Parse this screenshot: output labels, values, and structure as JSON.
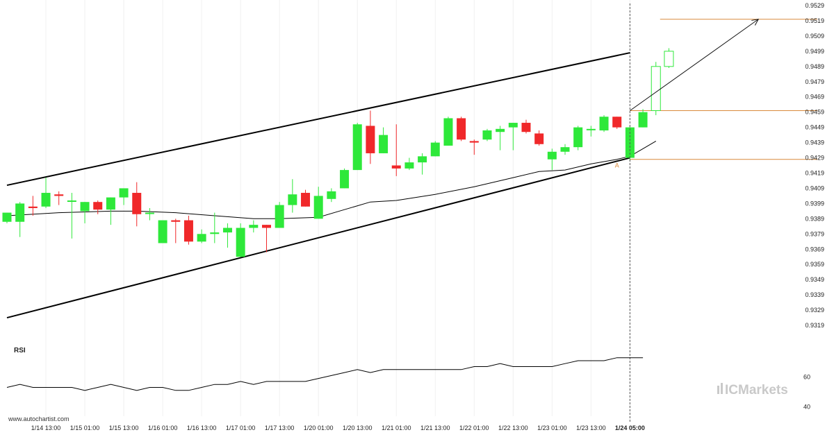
{
  "source": "www.autochartist.com",
  "brand": "ICMarkets",
  "colors": {
    "up": "#2ee83a",
    "down": "#f0282a",
    "level": "#d9893a",
    "line": "#000000"
  },
  "chart_data": [
    {
      "type": "candlestick",
      "title": "",
      "ylim": [
        0.9314,
        0.9529
      ],
      "y_ticks": [
        "0.9529",
        "0.9519",
        "0.9509",
        "0.9499",
        "0.9489",
        "0.9479",
        "0.9469",
        "0.9459",
        "0.9449",
        "0.9439",
        "0.9429",
        "0.9419",
        "0.9409",
        "0.9399",
        "0.9389",
        "0.9379",
        "0.9369",
        "0.9359",
        "0.9349",
        "0.9339",
        "0.9329",
        "0.9319"
      ],
      "x_ticks": [
        {
          "label": "1/14 13:00",
          "i": 3
        },
        {
          "label": "1/15 01:00",
          "i": 6
        },
        {
          "label": "1/15 13:00",
          "i": 9
        },
        {
          "label": "1/16 01:00",
          "i": 12
        },
        {
          "label": "1/16 13:00",
          "i": 15
        },
        {
          "label": "1/17 01:00",
          "i": 18
        },
        {
          "label": "1/17 13:00",
          "i": 21
        },
        {
          "label": "1/20 01:00",
          "i": 24
        },
        {
          "label": "1/20 13:00",
          "i": 27
        },
        {
          "label": "1/21 01:00",
          "i": 30
        },
        {
          "label": "1/21 13:00",
          "i": 33
        },
        {
          "label": "1/22 01:00",
          "i": 36
        },
        {
          "label": "1/22 13:00",
          "i": 39
        },
        {
          "label": "1/23 01:00",
          "i": 42
        },
        {
          "label": "1/23 13:00",
          "i": 45
        },
        {
          "label": "1/24 05:00",
          "i": 48,
          "bold": true
        }
      ],
      "candles": [
        {
          "o": 0.9387,
          "h": 0.9393,
          "l": 0.9386,
          "c": 0.9393
        },
        {
          "o": 0.9387,
          "h": 0.94,
          "l": 0.9377,
          "c": 0.9399
        },
        {
          "o": 0.9397,
          "h": 0.9404,
          "l": 0.9391,
          "c": 0.9396
        },
        {
          "o": 0.9397,
          "h": 0.9416,
          "l": 0.9396,
          "c": 0.9406
        },
        {
          "o": 0.9405,
          "h": 0.9407,
          "l": 0.9398,
          "c": 0.9404
        },
        {
          "o": 0.9401,
          "h": 0.9406,
          "l": 0.9376,
          "c": 0.9401
        },
        {
          "o": 0.9394,
          "h": 0.94,
          "l": 0.9386,
          "c": 0.94
        },
        {
          "o": 0.94,
          "h": 0.9401,
          "l": 0.9392,
          "c": 0.9395
        },
        {
          "o": 0.9395,
          "h": 0.9403,
          "l": 0.9385,
          "c": 0.9403
        },
        {
          "o": 0.9403,
          "h": 0.9409,
          "l": 0.9398,
          "c": 0.9409
        },
        {
          "o": 0.9406,
          "h": 0.9413,
          "l": 0.9384,
          "c": 0.9392
        },
        {
          "o": 0.9393,
          "h": 0.9396,
          "l": 0.9388,
          "c": 0.9393
        },
        {
          "o": 0.9373,
          "h": 0.9387,
          "l": 0.9373,
          "c": 0.9388
        },
        {
          "o": 0.9388,
          "h": 0.9389,
          "l": 0.9373,
          "c": 0.9387
        },
        {
          "o": 0.9388,
          "h": 0.9391,
          "l": 0.9372,
          "c": 0.9374
        },
        {
          "o": 0.9374,
          "h": 0.9382,
          "l": 0.9373,
          "c": 0.9379
        },
        {
          "o": 0.9379,
          "h": 0.9393,
          "l": 0.9373,
          "c": 0.938
        },
        {
          "o": 0.938,
          "h": 0.9386,
          "l": 0.937,
          "c": 0.9383
        },
        {
          "o": 0.9364,
          "h": 0.9386,
          "l": 0.9364,
          "c": 0.9383
        },
        {
          "o": 0.9383,
          "h": 0.9388,
          "l": 0.938,
          "c": 0.9385
        },
        {
          "o": 0.9385,
          "h": 0.9385,
          "l": 0.9367,
          "c": 0.9383
        },
        {
          "o": 0.9383,
          "h": 0.94,
          "l": 0.9383,
          "c": 0.9398
        },
        {
          "o": 0.9398,
          "h": 0.9415,
          "l": 0.9393,
          "c": 0.9405
        },
        {
          "o": 0.9406,
          "h": 0.9408,
          "l": 0.9397,
          "c": 0.9397
        },
        {
          "o": 0.9389,
          "h": 0.941,
          "l": 0.9389,
          "c": 0.9404
        },
        {
          "o": 0.9402,
          "h": 0.9409,
          "l": 0.94,
          "c": 0.9407
        },
        {
          "o": 0.9409,
          "h": 0.9422,
          "l": 0.9409,
          "c": 0.9421
        },
        {
          "o": 0.9421,
          "h": 0.9452,
          "l": 0.9421,
          "c": 0.9451
        },
        {
          "o": 0.945,
          "h": 0.946,
          "l": 0.9425,
          "c": 0.9432
        },
        {
          "o": 0.9432,
          "h": 0.9449,
          "l": 0.9432,
          "c": 0.9444
        },
        {
          "o": 0.9424,
          "h": 0.9451,
          "l": 0.9417,
          "c": 0.9422
        },
        {
          "o": 0.9422,
          "h": 0.9429,
          "l": 0.9421,
          "c": 0.9426
        },
        {
          "o": 0.9426,
          "h": 0.9432,
          "l": 0.9418,
          "c": 0.943
        },
        {
          "o": 0.943,
          "h": 0.944,
          "l": 0.943,
          "c": 0.9439
        },
        {
          "o": 0.9437,
          "h": 0.9456,
          "l": 0.9437,
          "c": 0.9455
        },
        {
          "o": 0.9455,
          "h": 0.9456,
          "l": 0.944,
          "c": 0.9441
        },
        {
          "o": 0.944,
          "h": 0.9441,
          "l": 0.9431,
          "c": 0.9439
        },
        {
          "o": 0.9441,
          "h": 0.9448,
          "l": 0.944,
          "c": 0.9447
        },
        {
          "o": 0.9446,
          "h": 0.945,
          "l": 0.9434,
          "c": 0.9448
        },
        {
          "o": 0.9449,
          "h": 0.9452,
          "l": 0.9434,
          "c": 0.9452
        },
        {
          "o": 0.9452,
          "h": 0.9454,
          "l": 0.9445,
          "c": 0.9446
        },
        {
          "o": 0.9445,
          "h": 0.9447,
          "l": 0.9437,
          "c": 0.9438
        },
        {
          "o": 0.9428,
          "h": 0.9435,
          "l": 0.9421,
          "c": 0.9433
        },
        {
          "o": 0.9433,
          "h": 0.9438,
          "l": 0.9431,
          "c": 0.9436
        },
        {
          "o": 0.9436,
          "h": 0.945,
          "l": 0.9434,
          "c": 0.9449
        },
        {
          "o": 0.9448,
          "h": 0.945,
          "l": 0.9443,
          "c": 0.9448
        },
        {
          "o": 0.9447,
          "h": 0.9457,
          "l": 0.9446,
          "c": 0.9456
        },
        {
          "o": 0.9456,
          "h": 0.9456,
          "l": 0.9448,
          "c": 0.9449
        },
        {
          "o": 0.9429,
          "h": 0.945,
          "l": 0.9427,
          "c": 0.9449
        },
        {
          "o": 0.9449,
          "h": 0.9461,
          "l": 0.9449,
          "c": 0.9459
        },
        {
          "o": 0.946,
          "h": 0.9492,
          "l": 0.9457,
          "c": 0.9489
        },
        {
          "o": 0.9489,
          "h": 0.9501,
          "l": 0.9488,
          "c": 0.9499
        }
      ],
      "projected_from": 50,
      "moving_average": [
        [
          0,
          0.9391
        ],
        [
          4,
          0.9393
        ],
        [
          8,
          0.9394
        ],
        [
          10,
          0.9394
        ],
        [
          13,
          0.9393
        ],
        [
          16,
          0.9391
        ],
        [
          19,
          0.9389
        ],
        [
          21,
          0.9389
        ],
        [
          24,
          0.939
        ],
        [
          26,
          0.9395
        ],
        [
          28,
          0.94
        ],
        [
          30,
          0.9401
        ],
        [
          33,
          0.9405
        ],
        [
          36,
          0.941
        ],
        [
          39,
          0.9416
        ],
        [
          41,
          0.942
        ],
        [
          43,
          0.9421
        ],
        [
          45,
          0.9425
        ],
        [
          47,
          0.9428
        ],
        [
          48,
          0.943
        ],
        [
          49,
          0.9435
        ],
        [
          50,
          0.944
        ]
      ],
      "channel": {
        "upper": [
          [
            0,
            0.9411
          ],
          [
            48,
            0.9498
          ]
        ],
        "lower": [
          [
            0,
            0.9324
          ],
          [
            48,
            0.9429
          ]
        ]
      },
      "levels": [
        0.952,
        0.946,
        0.9428
      ],
      "point_label": "A",
      "point_index": 47,
      "breakout_index": 48,
      "arrow": [
        [
          48,
          0.946
        ],
        [
          58,
          0.952
        ]
      ]
    },
    {
      "type": "line",
      "label": "RSI",
      "ylim": [
        35,
        85
      ],
      "y_ticks": [
        "60",
        "40"
      ],
      "values": [
        53,
        55,
        53,
        53,
        53,
        53,
        51,
        53,
        55,
        53,
        51,
        53,
        53,
        51,
        51,
        53,
        55,
        55,
        57,
        55,
        57,
        57,
        57,
        57,
        59,
        61,
        63,
        65,
        63,
        65,
        65,
        65,
        65,
        65,
        65,
        65,
        67,
        67,
        69,
        67,
        67,
        67,
        67,
        69,
        71,
        71,
        71,
        73,
        73,
        73
      ]
    }
  ]
}
